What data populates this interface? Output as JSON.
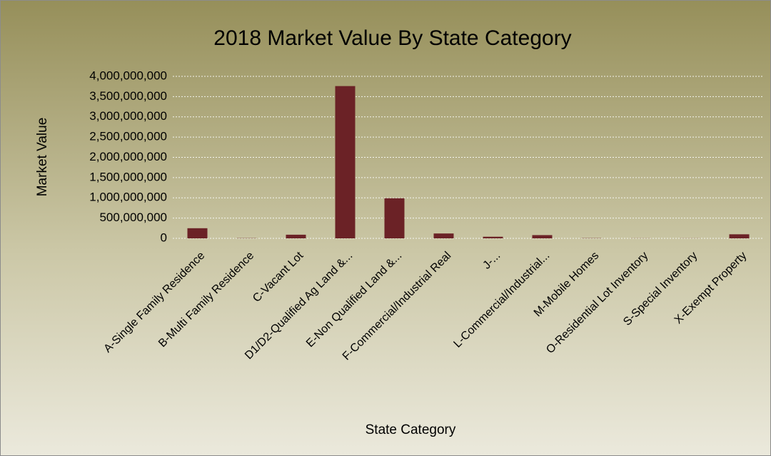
{
  "chart_data": {
    "type": "bar",
    "title": "2018 Market Value By State Category",
    "x_label": "State Category",
    "y_label": "Market Value",
    "categories": [
      "A-Single Family Residence",
      "B-Multi Family Residence",
      "C-Vacant Lot",
      "D1/D2-Qualified Ag Land &...",
      "E-Non Qualified Land &...",
      "F-Commercial/Industrial Real",
      "J-...",
      "L-Commercial/Industrial...",
      "M-Mobile Homes",
      "O-Residential Lot Inventory",
      "S-Special Inventory",
      "X-Exempt Property"
    ],
    "values": [
      250000000,
      5000000,
      90000000,
      3760000000,
      990000000,
      120000000,
      40000000,
      80000000,
      5000000,
      2000000,
      2000000,
      100000000
    ],
    "color": "#6b2226",
    "ylim": [
      0,
      4000000000
    ],
    "yticks": [
      0,
      {
        "value": 500000000,
        "label": "500,000,000"
      },
      {
        "value": 1000000000,
        "label": "1,000,000,000"
      },
      {
        "value": 1500000000,
        "label": "1,500,000,000"
      },
      {
        "value": 2000000000,
        "label": "2,000,000,000"
      },
      {
        "value": 2500000000,
        "label": "2,500,000,000"
      },
      {
        "value": 3000000000,
        "label": "3,000,000,000"
      },
      {
        "value": 3500000000,
        "label": "3,500,000,000"
      },
      {
        "value": 4000000000,
        "label": "4,000,000,000"
      }
    ],
    "grid": true
  }
}
